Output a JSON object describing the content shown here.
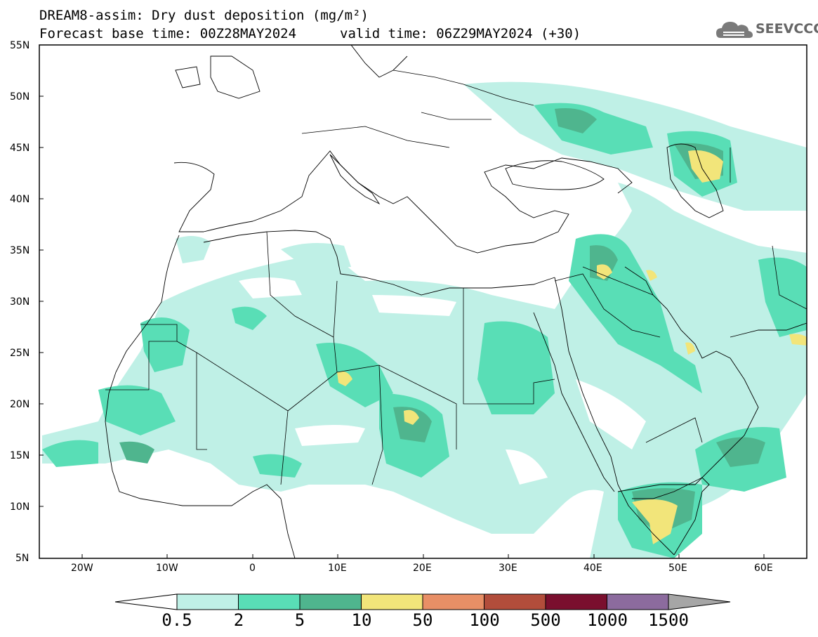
{
  "title": {
    "line1": "DREAM8-assim: Dry dust deposition (mg/m²)",
    "line2_left": "Forecast base time: 00Z28MAY2024",
    "line2_right": "valid time: 06Z29MAY2024 (+30)"
  },
  "logo": {
    "text": "SEEVCCC",
    "icon": "cloud-icon"
  },
  "axes": {
    "lat_labels": [
      "55N",
      "50N",
      "45N",
      "40N",
      "35N",
      "30N",
      "25N",
      "20N",
      "15N",
      "10N",
      "5N"
    ],
    "lon_labels": [
      "20W",
      "10W",
      "0",
      "10E",
      "20E",
      "30E",
      "40E",
      "50E",
      "60E"
    ],
    "lat_range": [
      5,
      55
    ],
    "lon_range": [
      -25,
      65
    ]
  },
  "colorbar": {
    "labels": [
      "0.5",
      "2",
      "5",
      "10",
      "50",
      "100",
      "500",
      "1000",
      "1500"
    ],
    "colors": [
      "#bff0e6",
      "#59deb6",
      "#4fb58e",
      "#f2e57a",
      "#e88f66",
      "#b24d3b",
      "#7a0f2e",
      "#8c6b9e"
    ],
    "under_color": "#ffffff",
    "over_color": "#a6a6a6"
  }
}
